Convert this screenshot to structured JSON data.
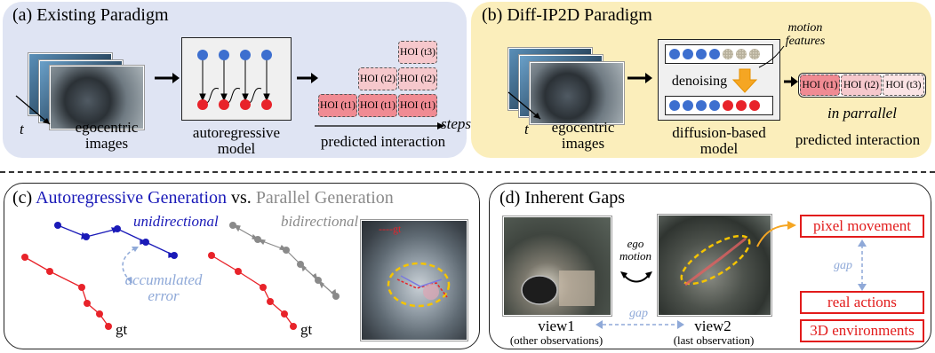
{
  "panels": {
    "a": {
      "title": "(a) Existing Paradigm",
      "t_label": "t",
      "images_label_1": "egocentric",
      "images_label_2": "images",
      "model_label_1": "autoregressive",
      "model_label_2": "model",
      "steps_label": "steps",
      "output_label": "predicted interaction",
      "hoi": [
        "HOI (t1)",
        "HOI (t1)",
        "HOI (t1)",
        "HOI (t2)",
        "HOI (t2)",
        "HOI (t3)"
      ]
    },
    "b": {
      "title": "(b) Diff-IP2D Paradigm",
      "t_label": "t",
      "images_label_1": "egocentric",
      "images_label_2": "images",
      "motion_label_1": "motion",
      "motion_label_2": "features",
      "denoising_label": "denoising",
      "model_label_1": "diffusion-based",
      "model_label_2": "model",
      "parallel_label": "in parrallel",
      "output_label": "predicted interaction",
      "hoi": [
        "HOI (t1)",
        "HOI (t2)",
        "HOI (t3)"
      ]
    },
    "c": {
      "title_part1": "(c) ",
      "title_part2": "Autoregressive Generation",
      "title_part3": " vs. ",
      "title_part4": "Parallel Generation",
      "unidirectional": "unidirectional",
      "bidirectional": "bidirectional",
      "accumulated_1": "accumulated",
      "accumulated_2": "error",
      "gt": "gt",
      "gt_legend": "----gt"
    },
    "d": {
      "title": "(d) Inherent Gaps",
      "ego_1": "ego",
      "ego_2": "motion",
      "gap": "gap",
      "view1": "view1",
      "view1_sub": "(other observations)",
      "view2": "view2",
      "view2_sub": "(last observation)",
      "pixel_movement": "pixel movement",
      "real_actions": "real actions",
      "env_3d": "3D environments"
    }
  },
  "colors": {
    "panel_a_bg": "#dfe4f3",
    "panel_b_bg": "#fbeebb",
    "blue_node": "#3d6fcf",
    "red_node": "#e8232a",
    "dark_blue": "#1a1ab8",
    "gray": "#8a8a8a",
    "light_blue": "#8fa9d8",
    "red": "#e21b1b",
    "orange": "#f5a623"
  }
}
